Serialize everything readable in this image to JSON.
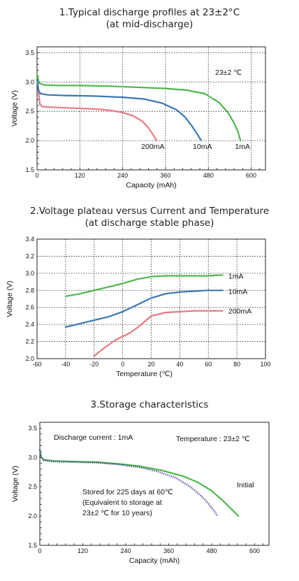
{
  "charts": [
    {
      "title_lines": [
        "1.Typical discharge profiles at 23±2°C",
        "(at mid-discharge)"
      ],
      "annotation": "23±2 ℃"
    },
    {
      "title_lines": [
        "2.Voltage plateau versus Current and Temperature",
        "(at discharge stable phase)"
      ]
    },
    {
      "title_lines": [
        "3.Storage characteristics"
      ],
      "annotations": [
        "Discharge current : 1mA",
        "Temperature : 23±2 ℃",
        "Stored for 225 days at 60℃",
        "(Equivalent to storage at",
        "23±2 ℃ for 10 years)"
      ]
    }
  ],
  "colors": {
    "green": "#4cb848",
    "blue": "#3a78b5",
    "red": "#e87a80",
    "navy": "#3a3a9a"
  },
  "chart_data": [
    {
      "type": "line",
      "title": "1.Typical discharge profiles at 23±2°C (at mid-discharge)",
      "xlabel": "Capacity (mAh)",
      "ylabel": "Voltage (V)",
      "xlim": [
        0,
        640
      ],
      "ylim": [
        1.5,
        3.6
      ],
      "xticks": [
        0,
        120,
        240,
        360,
        480,
        600
      ],
      "yticks": [
        1.5,
        2.0,
        2.5,
        3.0,
        3.5
      ],
      "grid": true,
      "series": [
        {
          "name": "200mA",
          "color": "#e87a80",
          "x": [
            0,
            4,
            8,
            15,
            40,
            80,
            120,
            160,
            200,
            240,
            270,
            295,
            312,
            325,
            335
          ],
          "y": [
            3.1,
            2.85,
            2.62,
            2.58,
            2.57,
            2.56,
            2.55,
            2.54,
            2.52,
            2.48,
            2.42,
            2.33,
            2.22,
            2.1,
            2.0
          ]
        },
        {
          "name": "10mA",
          "color": "#3a78b5",
          "x": [
            0,
            4,
            10,
            30,
            80,
            160,
            240,
            300,
            350,
            390,
            415,
            435,
            450,
            460
          ],
          "y": [
            3.05,
            2.86,
            2.8,
            2.78,
            2.77,
            2.76,
            2.74,
            2.71,
            2.64,
            2.53,
            2.4,
            2.24,
            2.1,
            2.0
          ]
        },
        {
          "name": "1mA",
          "color": "#4cb848",
          "x": [
            0,
            6,
            20,
            60,
            120,
            200,
            280,
            360,
            420,
            470,
            510,
            535,
            552,
            563,
            570
          ],
          "y": [
            3.12,
            2.98,
            2.95,
            2.94,
            2.94,
            2.93,
            2.91,
            2.89,
            2.86,
            2.8,
            2.65,
            2.48,
            2.3,
            2.15,
            2.0
          ]
        }
      ]
    },
    {
      "type": "line",
      "title": "2.Voltage plateau versus Current and Temperature (at discharge stable phase)",
      "xlabel": "Temperature (℃)",
      "ylabel": "Voltage (V)",
      "xlim": [
        -60,
        100
      ],
      "ylim": [
        2.0,
        3.4
      ],
      "xticks": [
        -60,
        -40,
        -20,
        0,
        20,
        40,
        60,
        80,
        100
      ],
      "yticks": [
        2.0,
        2.2,
        2.4,
        2.6,
        2.8,
        3.0,
        3.2,
        3.4
      ],
      "grid": true,
      "series": [
        {
          "name": "1mA",
          "color": "#4cb848",
          "x": [
            -40,
            -30,
            -20,
            -10,
            0,
            10,
            20,
            30,
            40,
            50,
            60,
            70
          ],
          "y": [
            2.73,
            2.76,
            2.8,
            2.84,
            2.88,
            2.93,
            2.96,
            2.97,
            2.97,
            2.97,
            2.97,
            2.98
          ]
        },
        {
          "name": "10mA",
          "color": "#3a78b5",
          "x": [
            -40,
            -30,
            -20,
            -10,
            0,
            10,
            20,
            30,
            40,
            50,
            60,
            70
          ],
          "y": [
            2.37,
            2.41,
            2.45,
            2.49,
            2.55,
            2.63,
            2.71,
            2.76,
            2.78,
            2.79,
            2.8,
            2.8
          ]
        },
        {
          "name": "200mA",
          "color": "#e87a80",
          "x": [
            -20,
            -15,
            -10,
            -5,
            0,
            5,
            10,
            15,
            20,
            30,
            40,
            50,
            60,
            70
          ],
          "y": [
            2.03,
            2.1,
            2.16,
            2.22,
            2.26,
            2.3,
            2.36,
            2.43,
            2.5,
            2.54,
            2.55,
            2.56,
            2.56,
            2.56
          ]
        }
      ]
    },
    {
      "type": "line",
      "title": "3.Storage characteristics",
      "xlabel": "Capacity (mAh)",
      "ylabel": "Voltage (V)",
      "xlim": [
        0,
        640
      ],
      "ylim": [
        1.5,
        3.6
      ],
      "xticks": [
        0,
        120,
        240,
        360,
        480,
        600
      ],
      "yticks": [
        1.5,
        2.0,
        2.5,
        3.0,
        3.5
      ],
      "grid": false,
      "series": [
        {
          "name": "Initial",
          "color": "#4cb848",
          "x": [
            0,
            4,
            12,
            40,
            100,
            160,
            220,
            280,
            340,
            400,
            440,
            480,
            510,
            530,
            545,
            555
          ],
          "y": [
            3.12,
            3.0,
            2.96,
            2.94,
            2.93,
            2.92,
            2.89,
            2.85,
            2.78,
            2.68,
            2.58,
            2.43,
            2.27,
            2.15,
            2.06,
            2.0
          ]
        },
        {
          "name": "Stored for 225 days at 60℃",
          "color": "#3a3a9a",
          "style": "dotted",
          "x": [
            0,
            4,
            12,
            40,
            100,
            160,
            220,
            280,
            330,
            380,
            420,
            450,
            470,
            485,
            497
          ],
          "y": [
            3.14,
            3.0,
            2.95,
            2.93,
            2.92,
            2.91,
            2.88,
            2.83,
            2.76,
            2.65,
            2.5,
            2.35,
            2.22,
            2.1,
            2.0
          ]
        }
      ]
    }
  ]
}
